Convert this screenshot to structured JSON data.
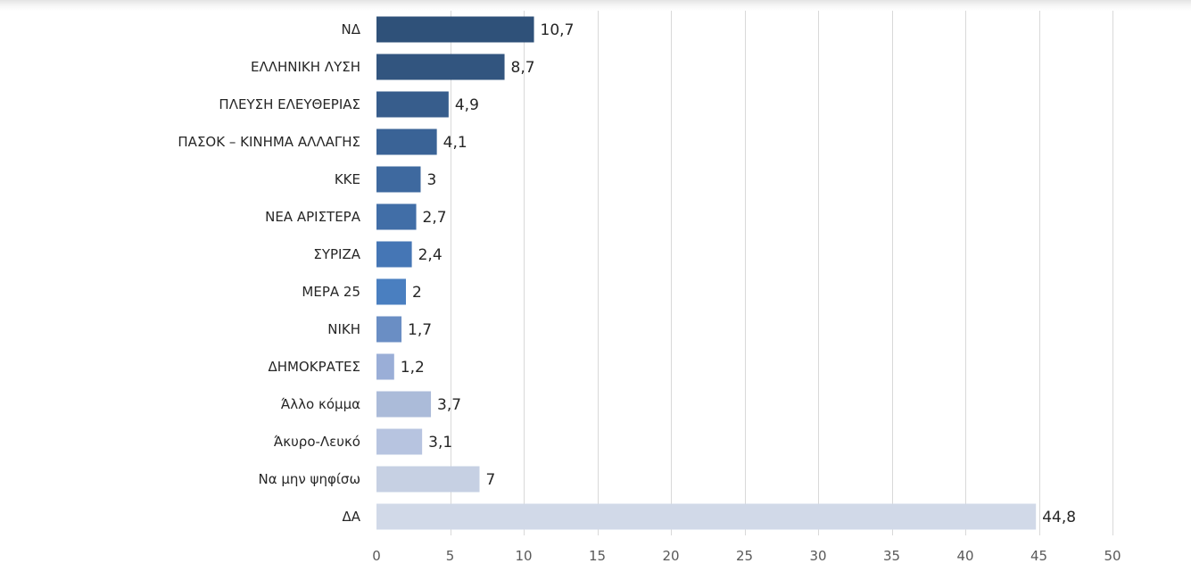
{
  "chart_data": {
    "type": "bar",
    "orientation": "horizontal",
    "title": "",
    "xlabel": "",
    "ylabel": "",
    "xlim": [
      0,
      50
    ],
    "x_ticks": [
      0,
      5,
      10,
      15,
      20,
      25,
      30,
      35,
      40,
      45,
      50
    ],
    "grid": "vertical",
    "legend": "none",
    "categories": [
      "ΝΔ",
      "ΕΛΛΗΝΙΚΗ ΛΥΣΗ",
      "ΠΛΕΥΣΗ ΕΛΕΥΘΕΡΙΑΣ",
      "ΠΑΣΟΚ – ΚΙΝΗΜΑ ΑΛΛΑΓΗΣ",
      "ΚΚΕ",
      "ΝΕΑ ΑΡΙΣΤΕΡΑ",
      "ΣΥΡΙΖΑ",
      "ΜΕΡΑ 25",
      "ΝΙΚΗ",
      "ΔΗΜΟΚΡΑΤΕΣ",
      "Άλλο κόμμα",
      "Άκυρο-Λευκό",
      "Να μην ψηφίσω",
      "ΔΑ"
    ],
    "values": [
      10.7,
      8.7,
      4.9,
      4.1,
      3,
      2.7,
      2.4,
      2,
      1.7,
      1.2,
      3.7,
      3.1,
      7,
      44.8
    ],
    "value_labels": [
      "10,7",
      "8,7",
      "4,9",
      "4,1",
      "3",
      "2,7",
      "2,4",
      "2",
      "1,7",
      "1,2",
      "3,7",
      "3,1",
      "7",
      "44,8"
    ],
    "bar_colors": [
      "#2f5179",
      "#32557f",
      "#375d8c",
      "#3a6396",
      "#3e699f",
      "#416ea7",
      "#4576b5",
      "#4a7fc0",
      "#6a8ec4",
      "#9aaed7",
      "#abbbd9",
      "#b7c4e0",
      "#c6d0e3",
      "#d1d9e8"
    ]
  }
}
